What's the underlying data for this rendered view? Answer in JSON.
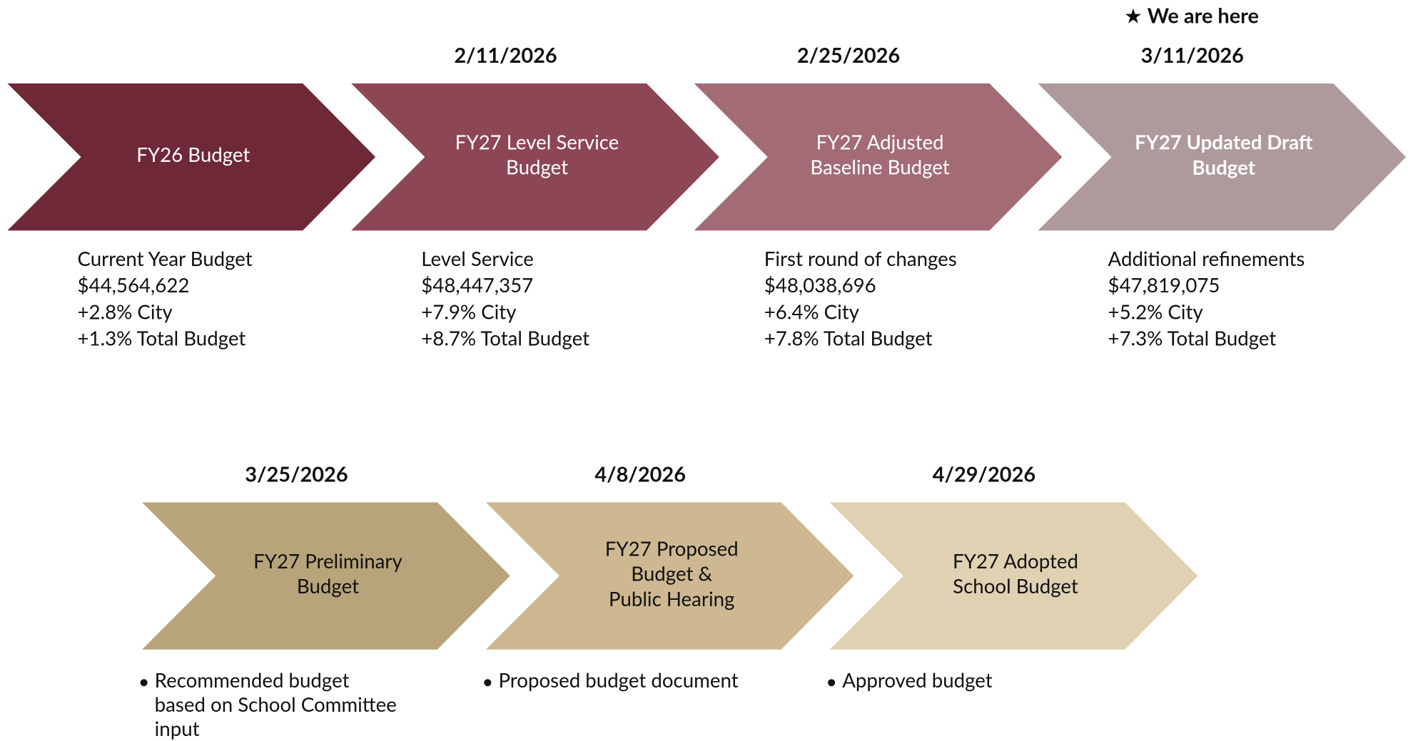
{
  "marker": "★ We are here",
  "steps": [
    {
      "date": null,
      "label": [
        "FY26 Budget"
      ],
      "details": [
        "Current Year Budget",
        "$44,564,622",
        "+2.8% City",
        "+1.3% Total Budget"
      ]
    },
    {
      "date": "2/11/2026",
      "label": [
        "FY27 Level Service",
        "Budget"
      ],
      "details": [
        "Level Service",
        "$48,447,357",
        "+7.9% City",
        "+8.7% Total Budget"
      ]
    },
    {
      "date": "2/25/2026",
      "label": [
        "FY27 Adjusted",
        "Baseline Budget"
      ],
      "details": [
        "First round of changes",
        "$48,038,696",
        "+6.4% City",
        "+7.8% Total Budget"
      ]
    },
    {
      "date": "3/11/2026",
      "label": [
        "FY27  Updated Draft",
        "Budget"
      ],
      "details": [
        "Additional refinements",
        "$47,819,075",
        "+5.2% City",
        "+7.3% Total Budget"
      ]
    },
    {
      "date": "3/25/2026",
      "label": [
        "FY27 Preliminary",
        "Budget"
      ],
      "bullets": [
        [
          "Recommended budget",
          "based on School Committee",
          "input"
        ]
      ]
    },
    {
      "date": "4/8/2026",
      "label": [
        "FY27 Proposed",
        "Budget &",
        "Public Hearing"
      ],
      "bullets": [
        [
          "Proposed budget document"
        ]
      ]
    },
    {
      "date": "4/29/2026",
      "label": [
        "FY27 Adopted",
        "School Budget"
      ],
      "bullets": [
        [
          "Approved budget"
        ]
      ]
    }
  ]
}
